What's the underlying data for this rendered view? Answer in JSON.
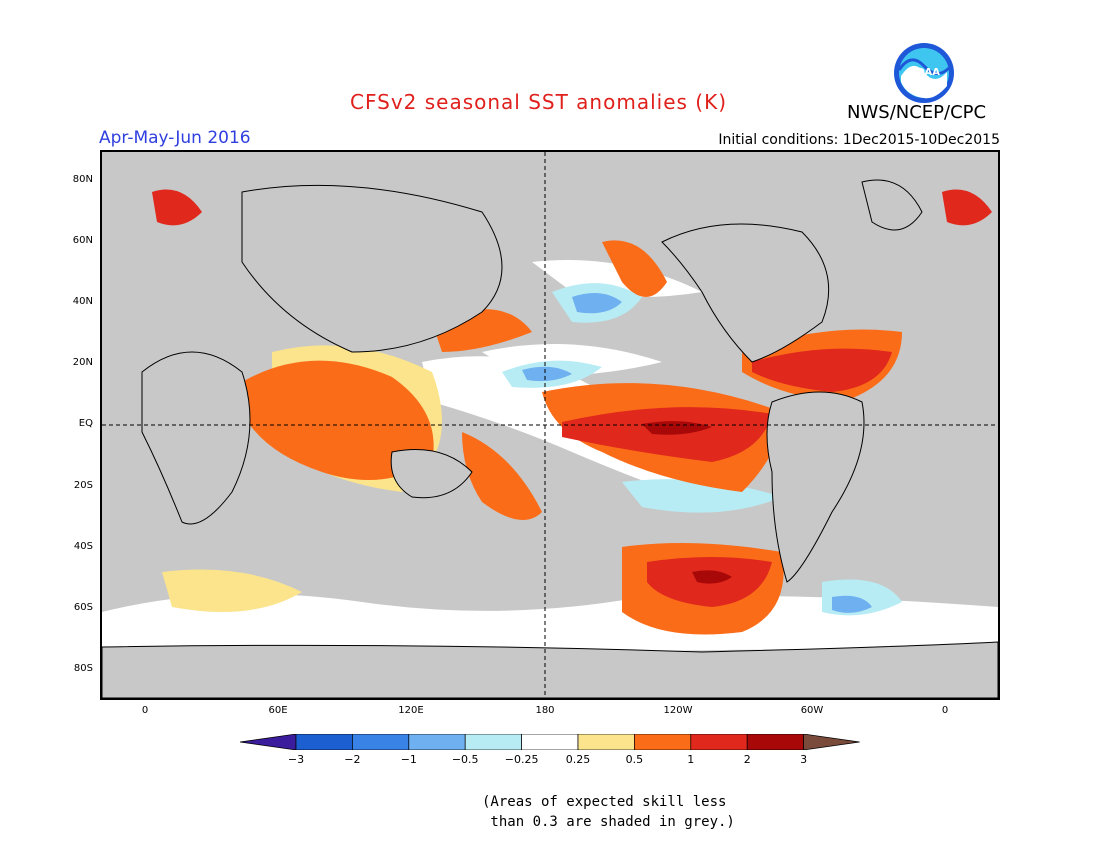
{
  "header": {
    "title": "CFSv2 seasonal SST anomalies (K)",
    "season": "Apr-May-Jun 2016",
    "initial_conditions": "Initial conditions: 1Dec2015-10Dec2015",
    "agency": "NWS/NCEP/CPC",
    "logo_text": "NOAA"
  },
  "map": {
    "lat_labels": [
      "80N",
      "60N",
      "40N",
      "20N",
      "EQ",
      "20S",
      "40S",
      "60S",
      "80S"
    ],
    "lon_labels": [
      "0",
      "60E",
      "120E",
      "180",
      "120W",
      "60W",
      "0"
    ]
  },
  "colorbar": {
    "labels": [
      "-3",
      "-2",
      "-1",
      "-0.5",
      "-0.25",
      "0.25",
      "0.5",
      "1",
      "2",
      "3"
    ],
    "colors": [
      "#3a1c9c",
      "#1b5fd0",
      "#3a83e6",
      "#6fb0f0",
      "#b8ecf4",
      "#ffffff",
      "#fbe48c",
      "#fb6c18",
      "#e0281c",
      "#a80808",
      "#7a4a3a"
    ]
  },
  "note": "(Areas of expected skill less\n than 0.3 are shaded in grey.)"
}
